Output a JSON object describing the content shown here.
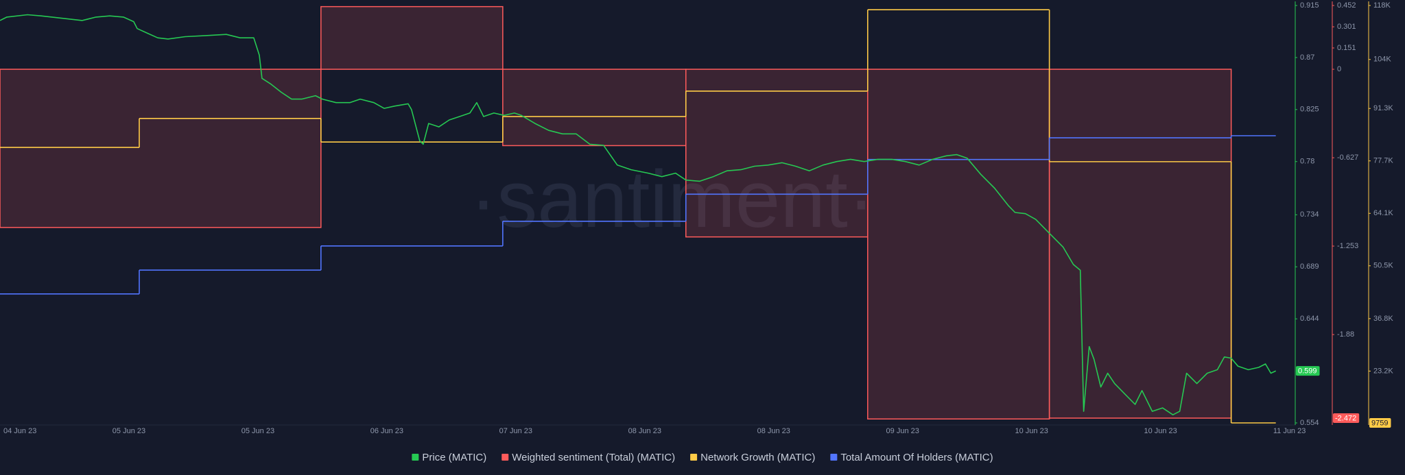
{
  "chart_data": {
    "type": "line",
    "watermark": "·santiment·",
    "xlim": [
      0,
      10.05
    ],
    "xticks": [
      {
        "value": 0,
        "label": "04 Jun 23"
      },
      {
        "value": 1,
        "label": "05 Jun 23"
      },
      {
        "value": 2,
        "label": "05 Jun 23"
      },
      {
        "value": 3,
        "label": "06 Jun 23"
      },
      {
        "value": 4,
        "label": "07 Jun 23"
      },
      {
        "value": 5,
        "label": "08 Jun 23"
      },
      {
        "value": 6,
        "label": "08 Jun 23"
      },
      {
        "value": 7,
        "label": "09 Jun 23"
      },
      {
        "value": 8,
        "label": "10 Jun 23"
      },
      {
        "value": 9,
        "label": "10 Jun 23"
      },
      {
        "value": 10,
        "label": "11 Jun 23"
      }
    ],
    "ylim": [
      0.554,
      0.915
    ],
    "yticks": [
      0.915,
      0.87,
      0.825,
      0.78,
      0.734,
      0.689,
      0.644,
      0.554
    ],
    "y2lim": [
      -2.506,
      0.452
    ],
    "y2ticks": [
      0.452,
      0.301,
      0.151,
      0,
      -0.627,
      -1.253,
      -1.88
    ],
    "y3lim": [
      9759,
      118000
    ],
    "y3ticks": [
      {
        "value": 118000,
        "label": "118K"
      },
      {
        "value": 104000,
        "label": "104K"
      },
      {
        "value": 91300,
        "label": "91.3K"
      },
      {
        "value": 77700,
        "label": "77.7K"
      },
      {
        "value": 64100,
        "label": "64.1K"
      },
      {
        "value": 50500,
        "label": "50.5K"
      },
      {
        "value": 36800,
        "label": "36.8K"
      },
      {
        "value": 23200,
        "label": "23.2K"
      }
    ],
    "y4lim": [
      0,
      100
    ],
    "series": [
      {
        "name": "Price (MATIC)",
        "type": "line",
        "axis": "y",
        "color": "#26c953",
        "x": [
          0,
          0.053,
          0.213,
          0.319,
          0.479,
          0.638,
          0.745,
          0.851,
          0.957,
          1.037,
          1.064,
          1.144,
          1.223,
          1.303,
          1.436,
          1.596,
          1.755,
          1.862,
          1.968,
          2.011,
          2.032,
          2.101,
          2.181,
          2.261,
          2.34,
          2.447,
          2.5,
          2.606,
          2.713,
          2.793,
          2.899,
          2.979,
          3.059,
          3.165,
          3.191,
          3.255,
          3.282,
          3.324,
          3.404,
          3.484,
          3.564,
          3.644,
          3.697,
          3.75,
          3.83,
          3.91,
          3.989,
          4.043,
          4.149,
          4.255,
          4.362,
          4.468,
          4.574,
          4.681,
          4.787,
          4.894,
          5.027,
          5.133,
          5.239,
          5.319,
          5.426,
          5.532,
          5.638,
          5.745,
          5.851,
          5.957,
          6.064,
          6.17,
          6.277,
          6.383,
          6.489,
          6.596,
          6.702,
          6.809,
          6.915,
          7.021,
          7.128,
          7.234,
          7.34,
          7.42,
          7.5,
          7.606,
          7.713,
          7.819,
          7.872,
          7.952,
          8.032,
          8.138,
          8.245,
          8.324,
          8.378,
          8.404,
          8.447,
          8.484,
          8.537,
          8.59,
          8.644,
          8.723,
          8.803,
          8.856,
          8.936,
          9.016,
          9.096,
          9.149,
          9.202,
          9.282,
          9.362,
          9.441,
          9.495,
          9.548,
          9.601,
          9.681,
          9.761,
          9.814,
          9.856,
          9.894
        ],
        "values": [
          0.902,
          0.905,
          0.907,
          0.906,
          0.904,
          0.902,
          0.905,
          0.906,
          0.905,
          0.901,
          0.895,
          0.891,
          0.887,
          0.886,
          0.888,
          0.889,
          0.89,
          0.887,
          0.887,
          0.872,
          0.852,
          0.847,
          0.84,
          0.834,
          0.834,
          0.837,
          0.834,
          0.831,
          0.831,
          0.834,
          0.831,
          0.826,
          0.828,
          0.83,
          0.825,
          0.798,
          0.795,
          0.813,
          0.81,
          0.816,
          0.819,
          0.822,
          0.831,
          0.819,
          0.822,
          0.82,
          0.822,
          0.82,
          0.813,
          0.807,
          0.804,
          0.804,
          0.795,
          0.794,
          0.777,
          0.773,
          0.77,
          0.767,
          0.77,
          0.764,
          0.763,
          0.767,
          0.772,
          0.773,
          0.776,
          0.777,
          0.779,
          0.776,
          0.772,
          0.777,
          0.78,
          0.782,
          0.78,
          0.782,
          0.782,
          0.78,
          0.777,
          0.782,
          0.785,
          0.786,
          0.783,
          0.769,
          0.757,
          0.742,
          0.736,
          0.735,
          0.73,
          0.718,
          0.706,
          0.691,
          0.686,
          0.564,
          0.62,
          0.609,
          0.585,
          0.597,
          0.588,
          0.579,
          0.57,
          0.582,
          0.564,
          0.567,
          0.561,
          0.564,
          0.597,
          0.588,
          0.597,
          0.6,
          0.611,
          0.61,
          0.603,
          0.6,
          0.602,
          0.605,
          0.597,
          0.599
        ]
      },
      {
        "name": "Weighted sentiment (Total) (MATIC)",
        "type": "step-area",
        "axis": "y2",
        "color": "#ff5b5b",
        "bins": [
          0,
          2.489,
          3.899,
          5.319,
          6.729,
          8.138,
          9.548
        ],
        "values": [
          -1.121,
          0.444,
          -0.541,
          -1.188,
          -2.478,
          -2.472
        ]
      },
      {
        "name": "Network Growth (MATIC)",
        "type": "step",
        "axis": "y3",
        "color": "#ffcb47",
        "bins": [
          0,
          1.08,
          2.489,
          3.899,
          5.319,
          6.729,
          8.138,
          9.548,
          9.894
        ],
        "values": [
          81200,
          88700,
          82600,
          89200,
          95800,
          116900,
          77500,
          9759
        ]
      },
      {
        "name": "Total Amount Of Holders (MATIC)",
        "type": "step",
        "axis": "y4",
        "color": "#5275ff",
        "bins": [
          0,
          1.08,
          2.489,
          3.899,
          5.319,
          6.729,
          8.138,
          9.548,
          9.894
        ],
        "values": [
          30.9,
          36.6,
          42.4,
          48.3,
          54.8,
          63.1,
          68.3,
          68.8
        ]
      }
    ]
  }
}
